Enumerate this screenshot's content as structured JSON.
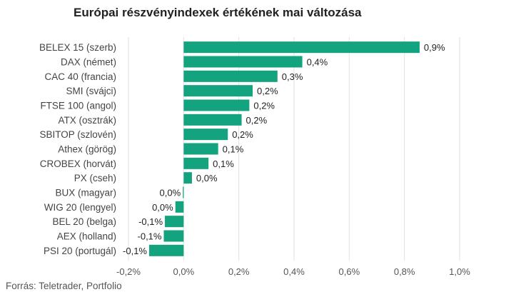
{
  "chart_data": {
    "type": "bar",
    "orientation": "horizontal",
    "title": "Európai részvényindexek értékének mai változása",
    "source": "Forrás: Teletrader, Portfolio",
    "color": "#14a37f",
    "xlim": [
      -0.2,
      1.0
    ],
    "grid": true,
    "xticks": [
      -0.2,
      0.0,
      0.2,
      0.4,
      0.6,
      0.8,
      1.0
    ],
    "xtick_labels": [
      "-0,2%",
      "0,0%",
      "0,2%",
      "0,4%",
      "0,6%",
      "0,8%",
      "1,0%"
    ],
    "categories": [
      "BELEX 15 (szerb)",
      "DAX (német)",
      "CAC 40 (francia)",
      "SMI (svájci)",
      "FTSE 100 (angol)",
      "ATX (osztrák)",
      "SBITOP (szlovén)",
      "Athex (görög)",
      "CROBEX (horvát)",
      "PX (cseh)",
      "BUX (magyar)",
      "WIG 20 (lengyel)",
      "BEL 20 (belga)",
      "AEX (holland)",
      "PSI 20 (portugál)"
    ],
    "values": [
      0.855,
      0.43,
      0.34,
      0.25,
      0.238,
      0.21,
      0.16,
      0.125,
      0.09,
      0.03,
      -0.003,
      -0.03,
      -0.068,
      -0.072,
      -0.125
    ],
    "data_labels": [
      "0,9%",
      "0,4%",
      "0,3%",
      "0,2%",
      "0,2%",
      "0,2%",
      "0,2%",
      "0,1%",
      "0,1%",
      "0,0%",
      "0,0%",
      "0,0%",
      "-0,1%",
      "-0,1%",
      "-0,1%"
    ]
  }
}
